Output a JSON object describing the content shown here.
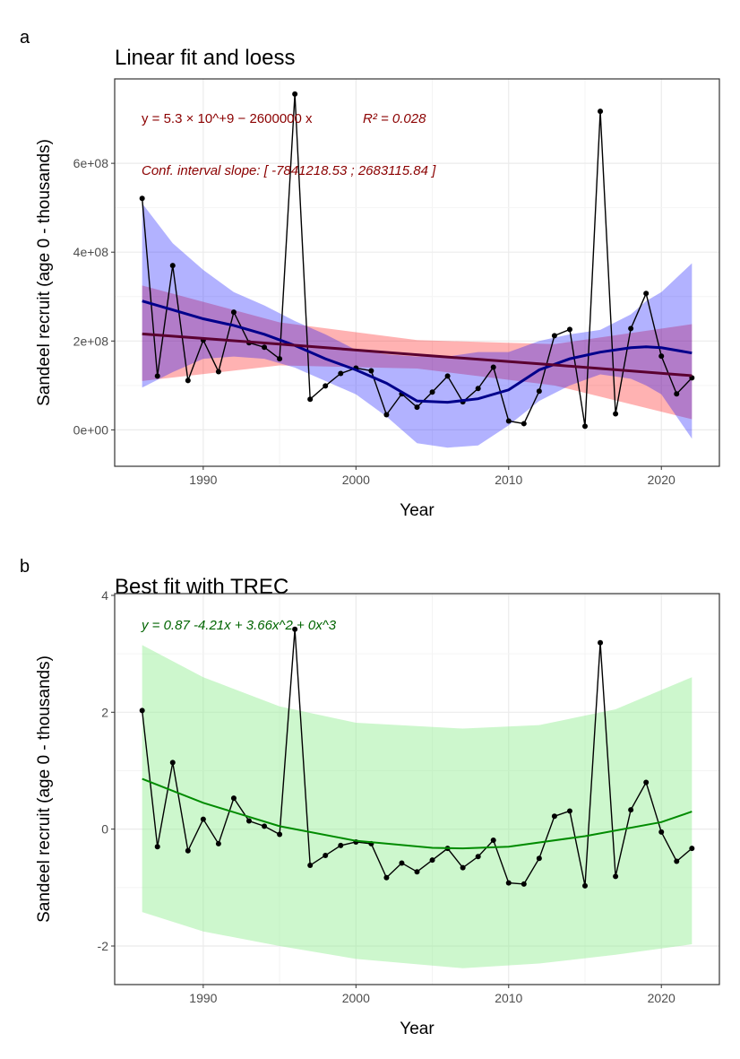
{
  "chart_data": [
    {
      "panel_label": "a",
      "type": "line",
      "title": "Linear fit and loess",
      "xlabel": "Year",
      "ylabel": "Sandeel recruit (age 0 - thousands)",
      "xlim": [
        1984.2,
        2023.8
      ],
      "ylim": [
        -82000000.0,
        790000000.0
      ],
      "xticks": [
        1990,
        2000,
        2010,
        2020
      ],
      "yticks": [
        0,
        200000000,
        400000000,
        600000000
      ],
      "ytick_labels": [
        "0e+00",
        "2e+08",
        "4e+08",
        "6e+08"
      ],
      "grid": true,
      "annotations": {
        "equation": "y = 5.3 × 10^+9 − 2600000 x",
        "r2": "R² = 0.028",
        "ci": "Conf. interval slope: [ -7841218.53 ; 2683115.84 ]"
      },
      "colors": {
        "points": "#000000",
        "loess": "#00008b",
        "loess_band": "#0000ff",
        "linear": "#5a0030",
        "linear_band": "#ff0000",
        "text": "#8b0000"
      },
      "x": [
        1986,
        1987,
        1988,
        1989,
        1990,
        1991,
        1992,
        1993,
        1994,
        1995,
        1996,
        1997,
        1998,
        1999,
        2000,
        2001,
        2002,
        2003,
        2004,
        2005,
        2006,
        2007,
        2008,
        2009,
        2010,
        2011,
        2012,
        2013,
        2014,
        2015,
        2016,
        2017,
        2018,
        2019,
        2020,
        2021,
        2022
      ],
      "y": [
        521000000.0,
        121000000.0,
        370000000.0,
        111000000.0,
        202000000.0,
        131000000.0,
        265000000.0,
        196000000.0,
        186000000.0,
        160000000.0,
        756000000.0,
        69000000.0,
        99000000.0,
        127000000.0,
        139000000.0,
        133000000.0,
        34000000.0,
        81000000.0,
        51000000.0,
        85000000.0,
        121000000.0,
        63000000.0,
        93000000.0,
        141000000.0,
        20000000.0,
        14000000.0,
        87000000.0,
        212000000.0,
        226000000.0,
        8000000.0,
        717000000.0,
        36000000.0,
        228000000.0,
        307000000.0,
        166000000.0,
        81000000.0,
        117000000.0
      ],
      "linear_fit": {
        "x": [
          1986,
          1995,
          2004,
          2013,
          2022
        ],
        "y": [
          216000000.0,
          193000000.0,
          169000000.0,
          146000000.0,
          122000000.0
        ],
        "lower": [
          110000000.0,
          145000000.0,
          138000000.0,
          100000000.0,
          24000000.0
        ],
        "upper": [
          325000000.0,
          242000000.0,
          202000000.0,
          193000000.0,
          238000000.0
        ]
      },
      "loess": {
        "x": [
          1986,
          1988,
          1990,
          1992,
          1994,
          1996,
          1998,
          2000,
          2002,
          2004,
          2006,
          2008,
          2010,
          2012,
          2014,
          2016,
          2018,
          2019,
          2020,
          2022
        ],
        "y": [
          290000000.0,
          270000000.0,
          250000000.0,
          235000000.0,
          215000000.0,
          190000000.0,
          160000000.0,
          135000000.0,
          105000000.0,
          65000000.0,
          62000000.0,
          70000000.0,
          90000000.0,
          135000000.0,
          160000000.0,
          175000000.0,
          185000000.0,
          187000000.0,
          185000000.0,
          173000000.0
        ],
        "lower": [
          95000000.0,
          130000000.0,
          160000000.0,
          165000000.0,
          160000000.0,
          140000000.0,
          110000000.0,
          80000000.0,
          30000000.0,
          -30000000.0,
          -40000000.0,
          -35000000.0,
          10000000.0,
          65000000.0,
          100000000.0,
          125000000.0,
          115000000.0,
          100000000.0,
          80000000.0,
          -20000000.0
        ],
        "upper": [
          510000000.0,
          420000000.0,
          360000000.0,
          310000000.0,
          280000000.0,
          245000000.0,
          215000000.0,
          180000000.0,
          170000000.0,
          165000000.0,
          165000000.0,
          175000000.0,
          175000000.0,
          200000000.0,
          215000000.0,
          225000000.0,
          260000000.0,
          290000000.0,
          310000000.0,
          375000000.0
        ]
      }
    },
    {
      "panel_label": "b",
      "type": "line",
      "title": "Best fit with TREC",
      "xlabel": "Year",
      "ylabel": "Sandeel recruit (age 0 - thousands)",
      "xlim": [
        1984.2,
        2023.8
      ],
      "ylim": [
        -2.66,
        4.03
      ],
      "xticks": [
        1990,
        2000,
        2010,
        2020
      ],
      "yticks": [
        -2,
        0,
        2,
        4
      ],
      "ytick_labels": [
        "-2",
        "0",
        "2",
        "4"
      ],
      "grid": true,
      "annotations": {
        "equation": "y =  0.87   -4.21x  + 3.66x^2  + 0x^3"
      },
      "colors": {
        "points": "#000000",
        "fit": "#008b00",
        "band": "#90ee90",
        "text": "#006400"
      },
      "x": [
        1986,
        1987,
        1988,
        1989,
        1990,
        1991,
        1992,
        1993,
        1994,
        1995,
        1996,
        1997,
        1998,
        1999,
        2000,
        2001,
        2002,
        2003,
        2004,
        2005,
        2006,
        2007,
        2008,
        2009,
        2010,
        2011,
        2012,
        2013,
        2014,
        2015,
        2016,
        2017,
        2018,
        2019,
        2020,
        2021,
        2022
      ],
      "y": [
        2.03,
        -0.3,
        1.14,
        -0.37,
        0.17,
        -0.25,
        0.53,
        0.14,
        0.05,
        -0.09,
        3.42,
        -0.62,
        -0.45,
        -0.28,
        -0.22,
        -0.25,
        -0.83,
        -0.58,
        -0.73,
        -0.53,
        -0.33,
        -0.66,
        -0.47,
        -0.19,
        -0.92,
        -0.94,
        -0.5,
        0.22,
        0.31,
        -0.97,
        3.19,
        -0.81,
        0.33,
        0.8,
        -0.05,
        -0.55,
        -0.33
      ],
      "fit": {
        "x": [
          1986,
          1990,
          1995,
          2000,
          2005,
          2007,
          2010,
          2015,
          2020,
          2022
        ],
        "y": [
          0.86,
          0.45,
          0.05,
          -0.2,
          -0.32,
          -0.33,
          -0.3,
          -0.12,
          0.12,
          0.3
        ]
      },
      "band": {
        "x": [
          1986,
          1990,
          1995,
          2000,
          2007,
          2012,
          2017,
          2022
        ],
        "lower": [
          -1.42,
          -1.75,
          -2.0,
          -2.22,
          -2.38,
          -2.3,
          -2.15,
          -1.97
        ],
        "upper": [
          3.15,
          2.6,
          2.1,
          1.82,
          1.72,
          1.78,
          2.05,
          2.6
        ]
      }
    }
  ]
}
